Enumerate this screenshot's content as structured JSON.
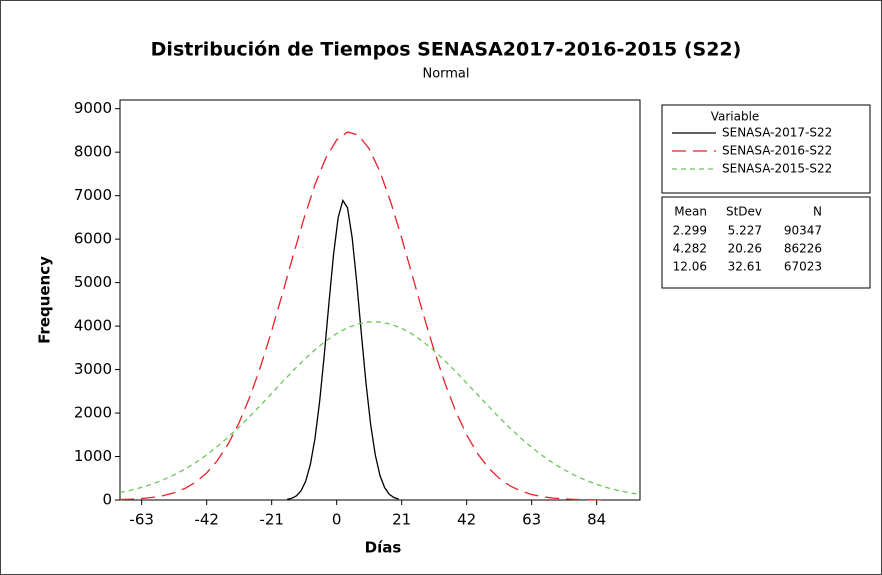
{
  "chart_data": {
    "type": "line",
    "title": "Distribución de Tiempos SENASA2017-2016-2015 (S22)",
    "subtitle": "Normal",
    "x_label": "Días",
    "y_label": "Frequency",
    "xlim": [
      -70,
      98
    ],
    "ylim": [
      0,
      9200
    ],
    "xticks": [
      -63,
      -42,
      -21,
      0,
      21,
      42,
      63,
      84
    ],
    "yticks": [
      0,
      1000,
      2000,
      3000,
      4000,
      5000,
      6000,
      7000,
      8000,
      9000
    ],
    "legend": {
      "title": "Variable",
      "position": "right"
    },
    "stats": {
      "headers": [
        "Mean",
        "StDev",
        "N"
      ],
      "rows": [
        [
          "2.299",
          "5.227",
          "90347"
        ],
        [
          "4.282",
          "20.26",
          "86226"
        ],
        [
          "12.06",
          "32.61",
          "67023"
        ]
      ]
    },
    "series": [
      {
        "name": "SENASA-2017-S22",
        "color": "#000000",
        "dash": "solid",
        "x": [
          -16,
          -14.5,
          -13,
          -11.5,
          -10,
          -8.5,
          -7,
          -5.5,
          -4,
          -2.5,
          -1,
          0.5,
          2,
          3.5,
          5,
          6.5,
          8,
          9.5,
          11,
          12.5,
          14,
          15.5,
          17,
          18.5,
          20
        ],
        "values": [
          15,
          39,
          95,
          212,
          433,
          817,
          1417,
          2267,
          3338,
          4527,
          5654,
          6503,
          6889,
          6721,
          6038,
          4996,
          3807,
          2672,
          1726,
          1028,
          563,
          284,
          132,
          57,
          22
        ]
      },
      {
        "name": "SENASA-2016-S22",
        "color": "#e8202a",
        "dash": "long",
        "x": [
          -70,
          -66.5,
          -63,
          -59.5,
          -56,
          -52.5,
          -49,
          -45.5,
          -42,
          -38.5,
          -35,
          -31.5,
          -28,
          -24.5,
          -21,
          -17.5,
          -14,
          -10.5,
          -7,
          -3.5,
          0,
          3.5,
          7,
          10.5,
          14,
          17.5,
          21,
          24.5,
          28,
          31.5,
          35,
          38.5,
          42,
          45.5,
          49,
          52.5,
          56,
          59.5,
          63,
          66.5,
          70,
          73.5,
          77,
          80.5,
          84,
          87.5
        ],
        "values": [
          10,
          19,
          34,
          60,
          101,
          167,
          267,
          413,
          623,
          911,
          1293,
          1782,
          2381,
          3088,
          3888,
          4752,
          5638,
          6491,
          7254,
          7868,
          8283,
          8464,
          8394,
          8080,
          7549,
          6846,
          6026,
          5147,
          4268,
          3436,
          2684,
          2034,
          1497,
          1069,
          741,
          499,
          325,
          206,
          127,
          76,
          44,
          25,
          13,
          7,
          4,
          2
        ]
      },
      {
        "name": "SENASA-2015-S22",
        "color": "#6cc65b",
        "dash": "short",
        "x": [
          -70,
          -66.5,
          -63,
          -59.5,
          -56,
          -52.5,
          -49,
          -45.5,
          -42,
          -38.5,
          -35,
          -31.5,
          -28,
          -24.5,
          -21,
          -17.5,
          -14,
          -10.5,
          -7,
          -3.5,
          0,
          3.5,
          7,
          10.5,
          14,
          17.5,
          21,
          24.5,
          28,
          31.5,
          35,
          38.5,
          42,
          45.5,
          49,
          52.5,
          56,
          59.5,
          63,
          66.5,
          70,
          73.5,
          77,
          80.5,
          84,
          87.5,
          91,
          94.5,
          98
        ],
        "values": [
          173,
          225,
          290,
          369,
          465,
          578,
          711,
          863,
          1038,
          1232,
          1448,
          1680,
          1929,
          2188,
          2452,
          2718,
          2980,
          3228,
          3455,
          3658,
          3829,
          3961,
          4051,
          4095,
          4093,
          4043,
          3949,
          3812,
          3638,
          3433,
          3201,
          2952,
          2690,
          2424,
          2159,
          1900,
          1654,
          1423,
          1210,
          1018,
          846,
          695,
          565,
          453,
          360,
          282,
          219,
          168,
          127
        ]
      }
    ]
  }
}
